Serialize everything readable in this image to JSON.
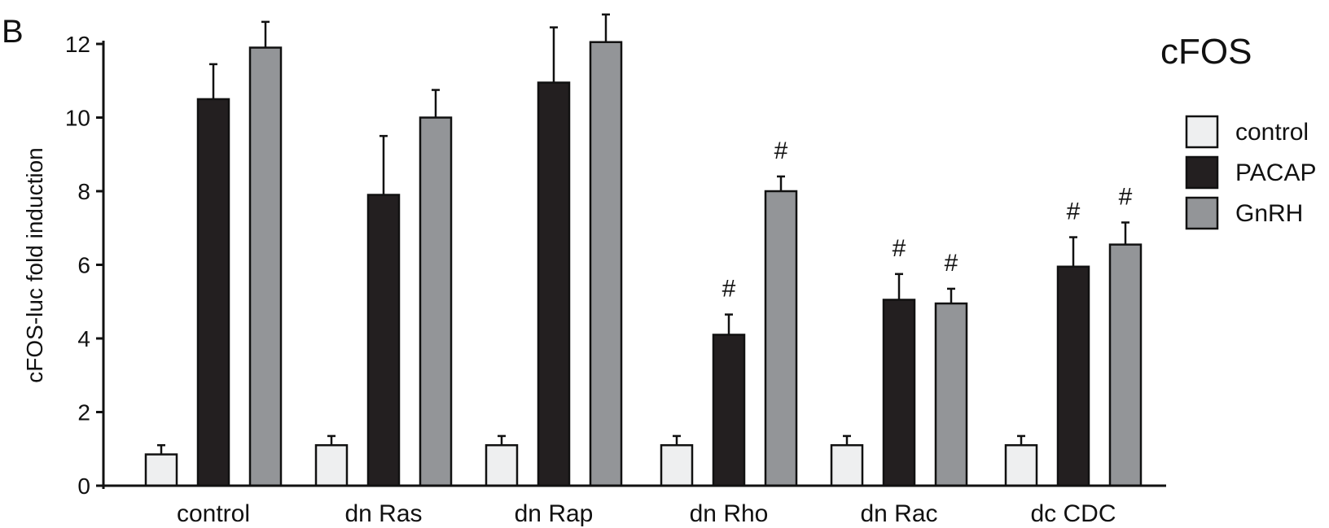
{
  "panel_label": "B",
  "chart_data": {
    "type": "bar",
    "title": "cFOS",
    "ylabel": "cFOS-luc fold induction",
    "xlabel": "",
    "ylim": [
      0,
      12
    ],
    "yticks": [
      0,
      2,
      4,
      6,
      8,
      10,
      12
    ],
    "grid": false,
    "legend_position": "right",
    "categories": [
      "control",
      "dn Ras",
      "dn Rap",
      "dn Rho",
      "dn Rac",
      "dc CDC"
    ],
    "series": [
      {
        "name": "control",
        "color": "#eeeff0",
        "values": [
          0.85,
          1.1,
          1.1,
          1.1,
          1.1,
          1.1
        ],
        "errors": [
          0.25,
          0.25,
          0.25,
          0.25,
          0.25,
          0.25
        ],
        "annotations": [
          "",
          "",
          "",
          "",
          "",
          ""
        ]
      },
      {
        "name": "PACAP",
        "color": "#231f20",
        "values": [
          10.5,
          7.9,
          10.95,
          4.1,
          5.05,
          5.95
        ],
        "errors": [
          0.95,
          1.6,
          1.5,
          0.55,
          0.7,
          0.8
        ],
        "annotations": [
          "",
          "",
          "",
          "#",
          "#",
          "#"
        ]
      },
      {
        "name": "GnRH",
        "color": "#939598",
        "values": [
          11.9,
          10.0,
          12.05,
          8.0,
          4.95,
          6.55
        ],
        "errors": [
          0.7,
          0.75,
          0.75,
          0.4,
          0.4,
          0.6
        ],
        "annotations": [
          "",
          "",
          "",
          "#",
          "#",
          "#"
        ]
      }
    ]
  }
}
